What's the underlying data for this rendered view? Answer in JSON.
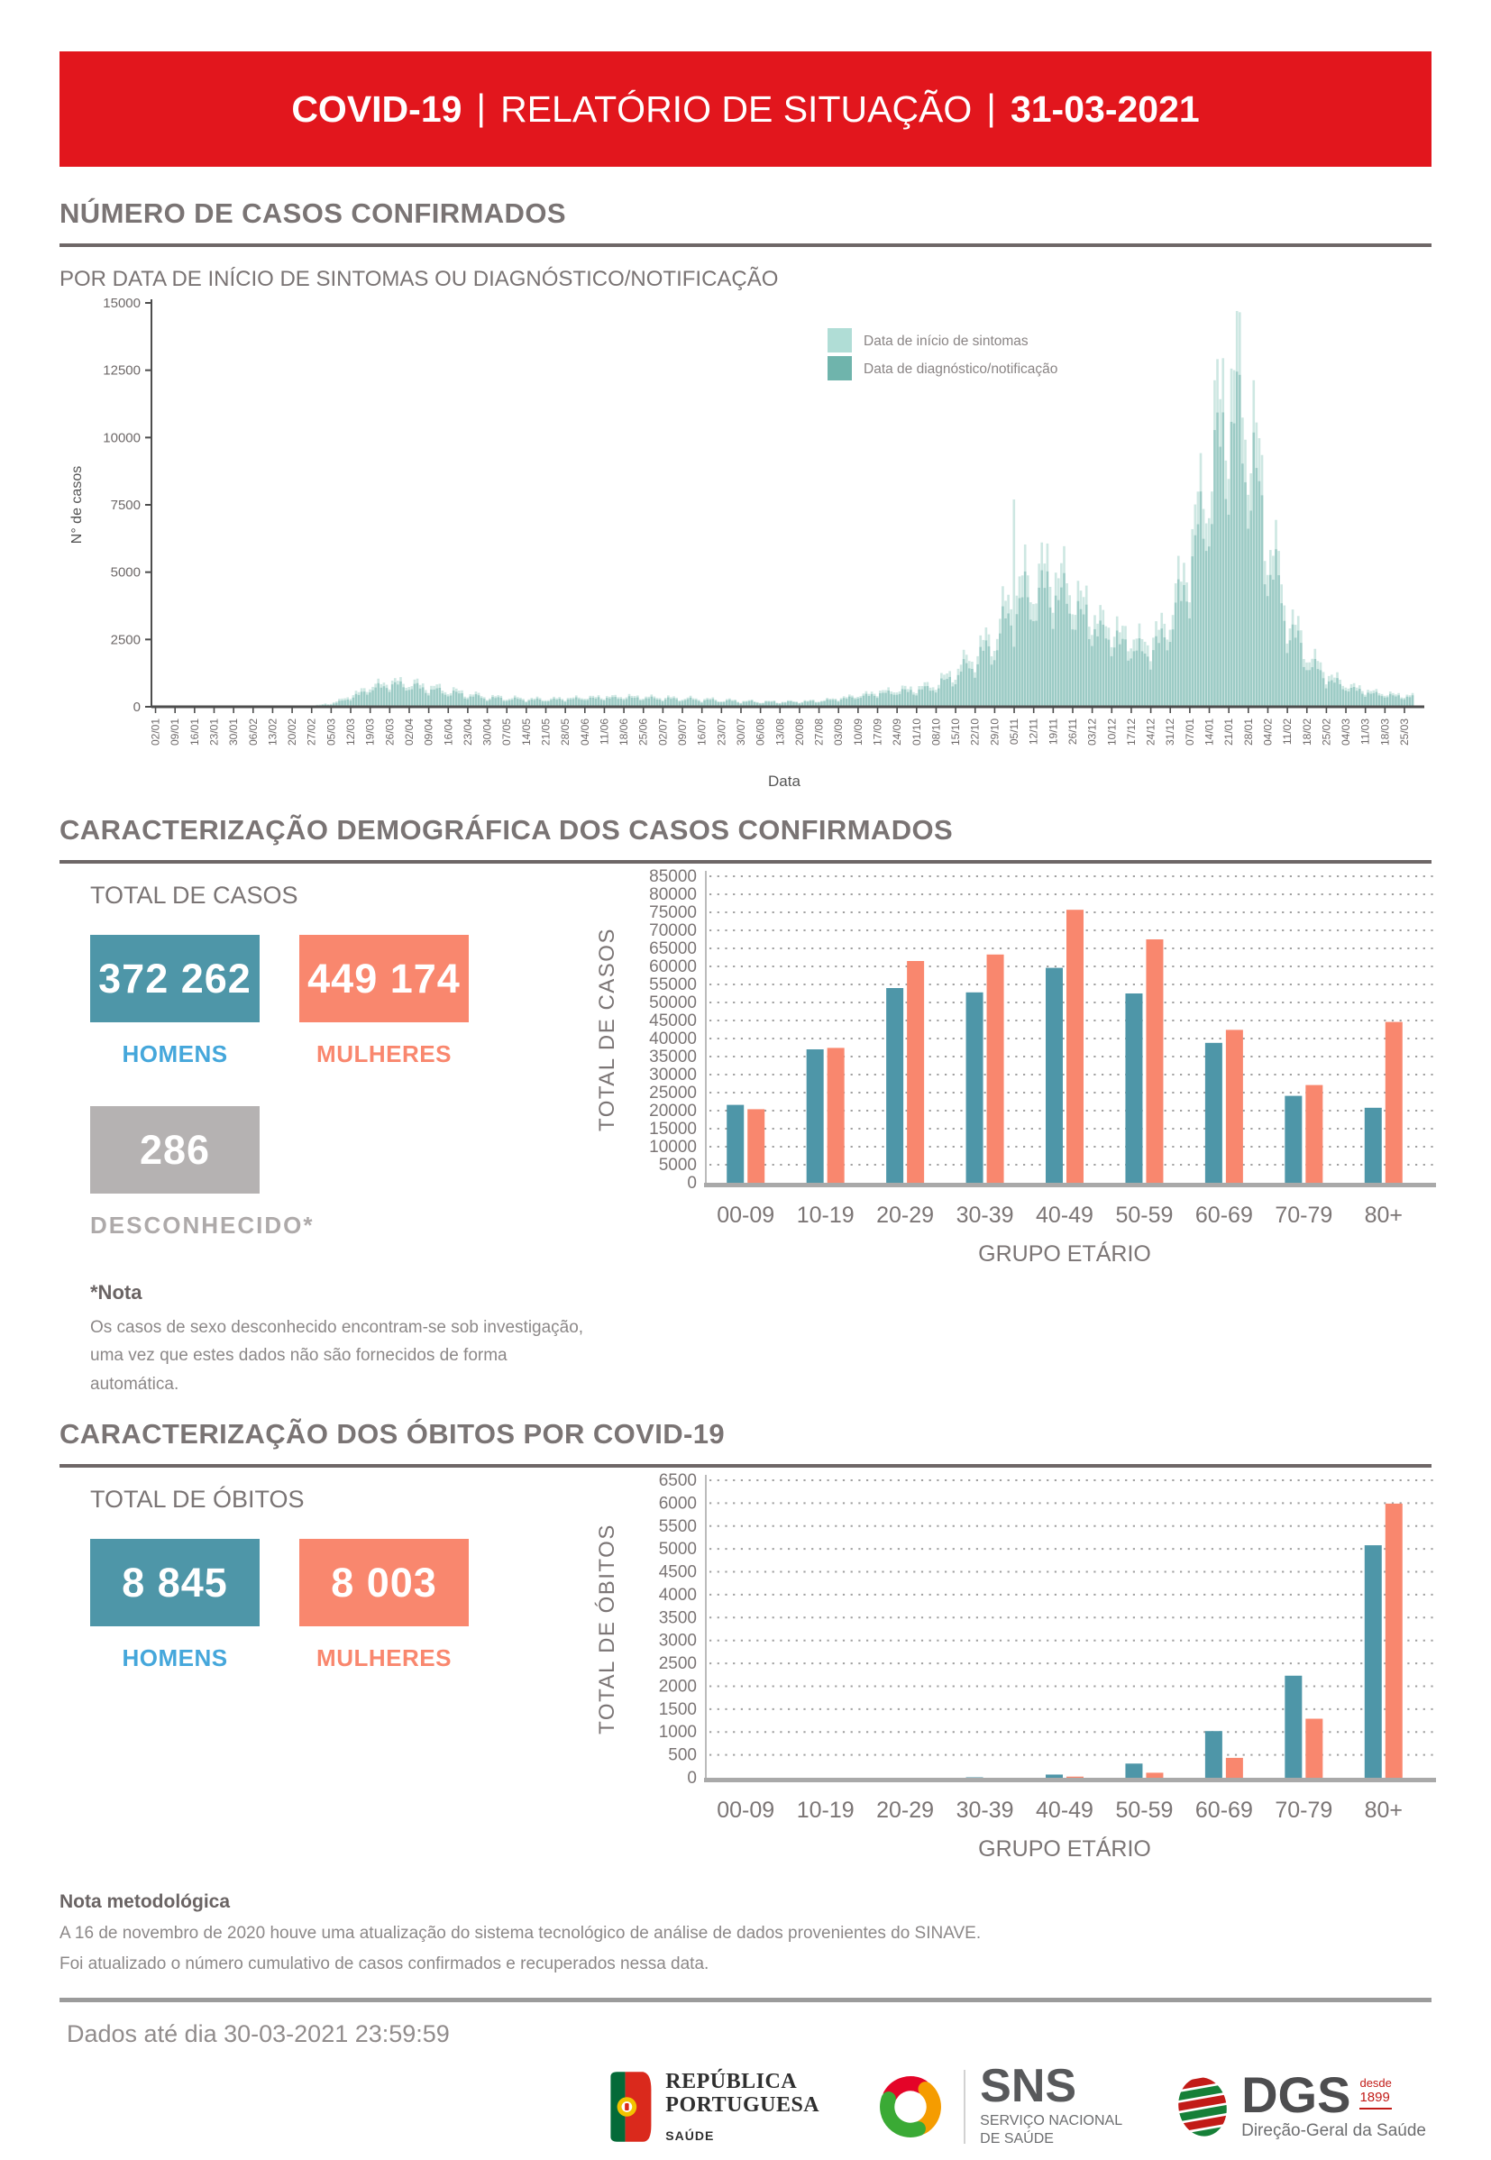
{
  "colors": {
    "banner_red": "#e2161d",
    "teal": "#4e96a8",
    "salmon": "#f9876e",
    "label_blue": "#45a7db",
    "box_gray": "#b5b2b2",
    "label_gray": "#aeaaaa",
    "title_gray": "#7a7474",
    "text_gray": "#8c8888",
    "epi_light": "#c9e5df",
    "epi_dark": "#74b5ad",
    "epi_light_solid": "#b0ddd6",
    "epi_dark_solid": "#6fb4ac"
  },
  "header": {
    "title_bold": "COVID-19",
    "sep1": "|",
    "title_regular": "RELATÓRIO DE SITUAÇÃO",
    "sep2": "|",
    "date": "31-03-2021"
  },
  "section_casos": {
    "title": "NÚMERO DE CASOS CONFIRMADOS",
    "subtitle": "POR DATA DE INÍCIO DE SINTOMAS OU DIAGNÓSTICO/NOTIFICAÇÃO"
  },
  "section_demografia": {
    "title": "CARACTERIZAÇÃO DEMOGRÁFICA DOS CASOS CONFIRMADOS",
    "heading": "TOTAL DE CASOS"
  },
  "totais_casos": {
    "homens_value": "372 262",
    "homens_label": "HOMENS",
    "mulheres_value": "449 174",
    "mulheres_label": "MULHERES",
    "desconhecido_value": "286",
    "desconhecido_label": "DESCONHECIDO*",
    "nota_title": "*Nota",
    "nota_line1": "Os casos de sexo desconhecido encontram-se sob investigação,",
    "nota_line2": "uma vez que estes dados não são fornecidos de forma automática."
  },
  "section_obitos": {
    "title": "CARACTERIZAÇÃO DOS ÓBITOS POR COVID-19",
    "heading": "TOTAL DE ÓBITOS"
  },
  "totais_obitos": {
    "homens_value": "8 845",
    "homens_label": "HOMENS",
    "mulheres_value": "8 003",
    "mulheres_label": "MULHERES"
  },
  "nota_metodologica": {
    "title": "Nota metodológica",
    "line1": "A 16 de novembro de 2020 houve uma atualização do sistema tecnológico de análise de dados provenientes do SINAVE.",
    "line2": "Foi atualizado o número cumulativo de casos confirmados e recuperados nessa data."
  },
  "footer": {
    "dados": "Dados até dia 30-03-2021 23:59:59",
    "republica": {
      "line1": "REPÚBLICA",
      "line2": "PORTUGUESA",
      "sub": "SAÚDE"
    },
    "sns": {
      "name": "SNS",
      "line1": "SERVIÇO NACIONAL",
      "line2": "DE SAÚDE"
    },
    "dgs": {
      "name": "DGS",
      "desde": "desde",
      "ano": "1899",
      "sub": "Direção-Geral da Saúde"
    }
  },
  "chart_data": [
    {
      "type": "bar",
      "title": "POR DATA DE INÍCIO DE SINTOMAS OU DIAGNÓSTICO/NOTIFICAÇÃO",
      "xlabel": "Data",
      "ylabel": "N° de casos",
      "ylim": [
        0,
        15000
      ],
      "yticks": [
        0,
        2500,
        5000,
        7500,
        10000,
        12500,
        15000
      ],
      "grid": "off",
      "legend_position": "top-right",
      "legend": [
        "Data de início de sintomas",
        "Data de diagnóstico/notificação"
      ],
      "x_weekly_labels": [
        "02/01",
        "09/01",
        "16/01",
        "23/01",
        "30/01",
        "06/02",
        "13/02",
        "20/02",
        "27/02",
        "05/03",
        "12/03",
        "19/03",
        "26/03",
        "02/04",
        "09/04",
        "16/04",
        "23/04",
        "30/04",
        "07/05",
        "14/05",
        "21/05",
        "28/05",
        "04/06",
        "11/06",
        "18/06",
        "25/06",
        "02/07",
        "09/07",
        "16/07",
        "23/07",
        "30/07",
        "06/08",
        "13/08",
        "20/08",
        "27/08",
        "03/09",
        "10/09",
        "17/09",
        "24/09",
        "01/10",
        "08/10",
        "15/10",
        "22/10",
        "29/10",
        "05/11",
        "12/11",
        "19/11",
        "26/11",
        "03/12",
        "10/12",
        "17/12",
        "24/12",
        "31/12",
        "07/01",
        "14/01",
        "21/01",
        "28/01",
        "04/02",
        "11/02",
        "18/02",
        "25/02",
        "04/03",
        "11/03",
        "18/03",
        "25/03"
      ],
      "series": [
        {
          "name": "Data de início de sintomas",
          "color_key": "epi_light",
          "weekly_values": [
            3,
            3,
            4,
            4,
            6,
            8,
            10,
            14,
            40,
            150,
            450,
            850,
            1050,
            1000,
            850,
            700,
            550,
            420,
            380,
            340,
            330,
            360,
            400,
            420,
            440,
            420,
            390,
            360,
            330,
            290,
            250,
            220,
            215,
            230,
            260,
            360,
            480,
            620,
            720,
            780,
            950,
            1500,
            2200,
            3000,
            4800,
            5400,
            5800,
            4900,
            3900,
            3300,
            2900,
            2700,
            3800,
            6500,
            10000,
            14000,
            12500,
            7500,
            4000,
            2300,
            1400,
            950,
            700,
            560,
            480
          ]
        },
        {
          "name": "Data de diagnóstico/notificação",
          "color_key": "epi_dark",
          "weekly_values": [
            0,
            0,
            0,
            0,
            0,
            0,
            0,
            2,
            20,
            100,
            350,
            700,
            900,
            850,
            700,
            580,
            450,
            350,
            310,
            280,
            270,
            300,
            330,
            350,
            360,
            350,
            320,
            300,
            270,
            240,
            210,
            185,
            180,
            195,
            220,
            300,
            400,
            520,
            600,
            650,
            800,
            1250,
            1850,
            2500,
            4000,
            4500,
            4800,
            4100,
            3300,
            2800,
            2400,
            2200,
            3200,
            5500,
            8500,
            11800,
            10500,
            6300,
            3400,
            1900,
            1150,
            800,
            580,
            470,
            400
          ]
        }
      ],
      "spikes": [
        {
          "series": 0,
          "week": 44,
          "day": 0,
          "value": 7700
        }
      ]
    },
    {
      "type": "bar",
      "categories": [
        "00-09",
        "10-19",
        "20-29",
        "30-39",
        "40-49",
        "50-59",
        "60-69",
        "70-79",
        "80+"
      ],
      "series": [
        {
          "name": "HOMENS",
          "color_key": "teal",
          "values": [
            21600,
            37000,
            54000,
            52800,
            59600,
            52500,
            38800,
            24100,
            20800
          ]
        },
        {
          "name": "MULHERES",
          "color_key": "salmon",
          "values": [
            20400,
            37400,
            61500,
            63300,
            75700,
            67500,
            42400,
            27100,
            44600
          ]
        }
      ],
      "ylabel": "TOTAL DE CASOS",
      "xlabel": "GRUPO ETÁRIO",
      "ylim": [
        0,
        85000
      ],
      "ytick_step": 5000,
      "grid": "dotted",
      "legend_position": "none"
    },
    {
      "type": "bar",
      "categories": [
        "00-09",
        "10-19",
        "20-29",
        "30-39",
        "40-49",
        "50-59",
        "60-69",
        "70-79",
        "80+"
      ],
      "series": [
        {
          "name": "HOMENS",
          "color_key": "teal",
          "values": [
            0,
            0,
            2,
            10,
            70,
            310,
            1020,
            2230,
            5080
          ]
        },
        {
          "name": "MULHERES",
          "color_key": "salmon",
          "values": [
            0,
            0,
            1,
            5,
            25,
            110,
            435,
            1290,
            5990
          ]
        }
      ],
      "ylabel": "TOTAL DE ÓBITOS",
      "xlabel": "GRUPO ETÁRIO",
      "ylim": [
        0,
        6500
      ],
      "ytick_step": 500,
      "grid": "dotted",
      "legend_position": "none"
    }
  ]
}
